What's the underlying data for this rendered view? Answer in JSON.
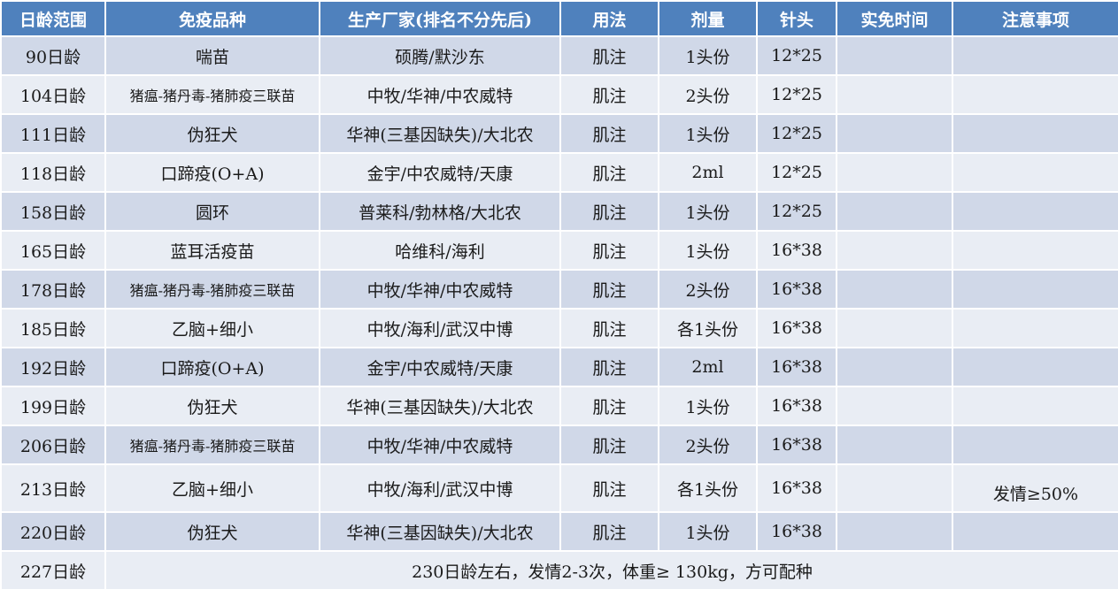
{
  "columns": [
    "日龄范围",
    "免疫品种",
    "生产厂家(排名不分先后)",
    "用法",
    "剂量",
    "针头",
    "实免时间",
    "注意事项"
  ],
  "rows": [
    {
      "age": "90日龄",
      "vaccine": "喘苗",
      "maker": "硕腾/默沙东",
      "usage": "肌注",
      "dose": "1头份",
      "needle": "12*25",
      "actual": "",
      "note": ""
    },
    {
      "age": "104日龄",
      "vaccine": "猪瘟-猪丹毒-猪肺疫三联苗",
      "maker": "中牧/华神/中农威特",
      "usage": "肌注",
      "dose": "2头份",
      "needle": "12*25",
      "actual": "",
      "note": ""
    },
    {
      "age": "111日龄",
      "vaccine": "伪狂犬",
      "maker": "华神(三基因缺失)/大北农",
      "usage": "肌注",
      "dose": "1头份",
      "needle": "12*25",
      "actual": "",
      "note": ""
    },
    {
      "age": "118日龄",
      "vaccine": "口蹄疫(O+A)",
      "maker": "金宇/中农威特/天康",
      "usage": "肌注",
      "dose": "2ml",
      "needle": "12*25",
      "actual": "",
      "note": ""
    },
    {
      "age": "158日龄",
      "vaccine": "圆环",
      "maker": "普莱科/勃林格/大北农",
      "usage": "肌注",
      "dose": "1头份",
      "needle": "12*25",
      "actual": "",
      "note": ""
    },
    {
      "age": "165日龄",
      "vaccine": "蓝耳活疫苗",
      "maker": "哈维科/海利",
      "usage": "肌注",
      "dose": "1头份",
      "needle": "16*38",
      "actual": "",
      "note": ""
    },
    {
      "age": "178日龄",
      "vaccine": "猪瘟-猪丹毒-猪肺疫三联苗",
      "maker": "中牧/华神/中农威特",
      "usage": "肌注",
      "dose": "2头份",
      "needle": "16*38",
      "actual": "",
      "note": ""
    },
    {
      "age": "185日龄",
      "vaccine": "乙脑+细小",
      "maker": "中牧/海利/武汉中博",
      "usage": "肌注",
      "dose": "各1头份",
      "needle": "16*38",
      "actual": "",
      "note": ""
    },
    {
      "age": "192日龄",
      "vaccine": "口蹄疫(O+A)",
      "maker": "金宇/中农威特/天康",
      "usage": "肌注",
      "dose": "2ml",
      "needle": "16*38",
      "actual": "",
      "note": ""
    },
    {
      "age": "199日龄",
      "vaccine": "伪狂犬",
      "maker": "华神(三基因缺失)/大北农",
      "usage": "肌注",
      "dose": "1头份",
      "needle": "16*38",
      "actual": "",
      "note": ""
    },
    {
      "age": "206日龄",
      "vaccine": "猪瘟-猪丹毒-猪肺疫三联苗",
      "maker": "中牧/华神/中农威特",
      "usage": "肌注",
      "dose": "2头份",
      "needle": "16*38",
      "actual": "",
      "note": ""
    },
    {
      "age": "213日龄",
      "vaccine": "乙脑+细小",
      "maker": "中牧/海利/武汉中博",
      "usage": "肌注",
      "dose": "各1头份",
      "needle": "16*38",
      "actual": "",
      "note": "发情≥50%"
    },
    {
      "age": "220日龄",
      "vaccine": "伪狂犬",
      "maker": "华神(三基因缺失)/大北农",
      "usage": "肌注",
      "dose": "1头份",
      "needle": "16*38",
      "actual": "",
      "note": ""
    }
  ],
  "final_row": {
    "age": "227日龄",
    "text": "230日龄左右，发情2-3次，体重≥ 130kg，方可配种"
  },
  "colors": {
    "header": "#4f81bd",
    "row_odd": "#d0d8e8",
    "row_even": "#e9edf4"
  }
}
